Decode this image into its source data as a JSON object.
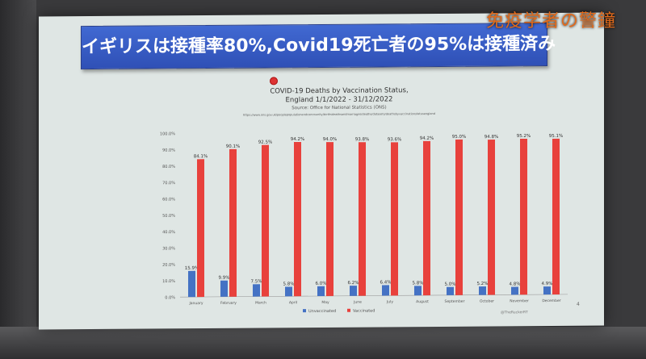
{
  "watermark": "免疫学者の警鐘",
  "banner": "イギリスは接種率80%,Covid19死亡者の95%は接種済み",
  "page_number": "4",
  "chart_data": {
    "type": "bar",
    "title_line1": "COVID-19 Deaths by Vaccination Status,",
    "title_line2": "England 1/1/2022 - 31/12/2022",
    "source": "Source: Office for National Statistics (ONS)",
    "url": "https://www.ons.gov.uk/peoplepopulationandcommunity/birthsdeathsandmarriages/deaths/datasets/deathsbyvaccinationstatusengland",
    "credit": "@TheRuckerRT",
    "categories": [
      "January",
      "February",
      "March",
      "April",
      "May",
      "June",
      "July",
      "August",
      "September",
      "October",
      "November",
      "December"
    ],
    "yticks": [
      "0.0%",
      "10.0%",
      "20.0%",
      "30.0%",
      "40.0%",
      "50.0%",
      "60.0%",
      "70.0%",
      "80.0%",
      "90.0%",
      "100.0%"
    ],
    "ylim": [
      0,
      100
    ],
    "series": [
      {
        "name": "Unvaccinated",
        "color": "#4472c4",
        "values": [
          15.9,
          9.9,
          7.5,
          5.8,
          6.0,
          6.2,
          6.4,
          5.8,
          5.0,
          5.2,
          4.8,
          4.9
        ],
        "labels": [
          "15.9%",
          "9.9%",
          "7.5%",
          "5.8%",
          "6.0%",
          "6.2%",
          "6.4%",
          "5.8%",
          "5.0%",
          "5.2%",
          "4.8%",
          "4.9%"
        ]
      },
      {
        "name": "Vaccinated",
        "color": "#e8413c",
        "values": [
          84.1,
          90.1,
          92.5,
          94.2,
          94.0,
          93.8,
          93.6,
          94.2,
          95.0,
          94.8,
          95.2,
          95.1
        ],
        "labels": [
          "84.1%",
          "90.1%",
          "92.5%",
          "94.2%",
          "94.0%",
          "93.8%",
          "93.6%",
          "94.2%",
          "95.0%",
          "94.8%",
          "95.2%",
          "95.1%"
        ]
      }
    ],
    "legend_position": "bottom",
    "grid": false
  }
}
